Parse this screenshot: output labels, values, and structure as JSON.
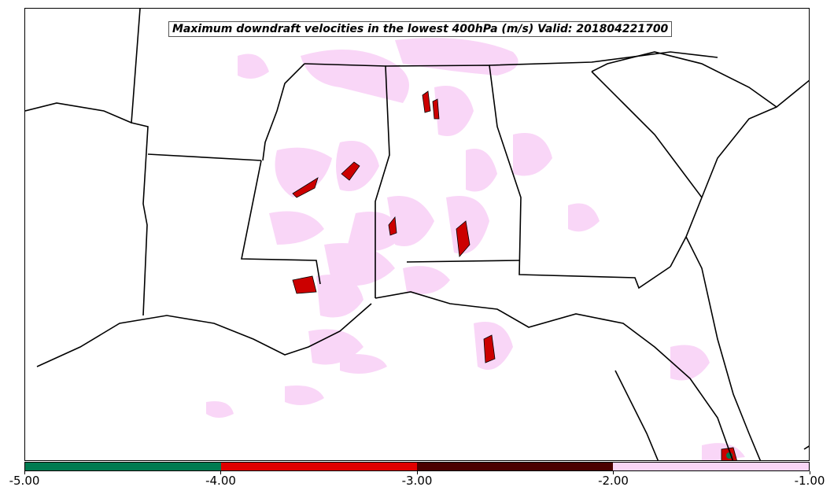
{
  "title": "Maximum downdraft velocities in the lowest 400hPa (m/s) Valid: 201804221700",
  "colorbar": {
    "segments": [
      {
        "from": -5.0,
        "to": -4.0,
        "color": "#007a50"
      },
      {
        "from": -4.0,
        "to": -3.0,
        "color": "#e00000"
      },
      {
        "from": -3.0,
        "to": -2.0,
        "color": "#4a0000"
      },
      {
        "from": -2.0,
        "to": -1.0,
        "color": "#f9d6f7"
      }
    ],
    "tick_labels": [
      "-5.00",
      "-4.00",
      "-3.00",
      "-2.00",
      "-1.00"
    ]
  },
  "colors": {
    "boundary": "#000000",
    "light_contour": "#f9d6f7",
    "strong_contour": "#cc0000",
    "very_strong_contour": "#007a50"
  }
}
